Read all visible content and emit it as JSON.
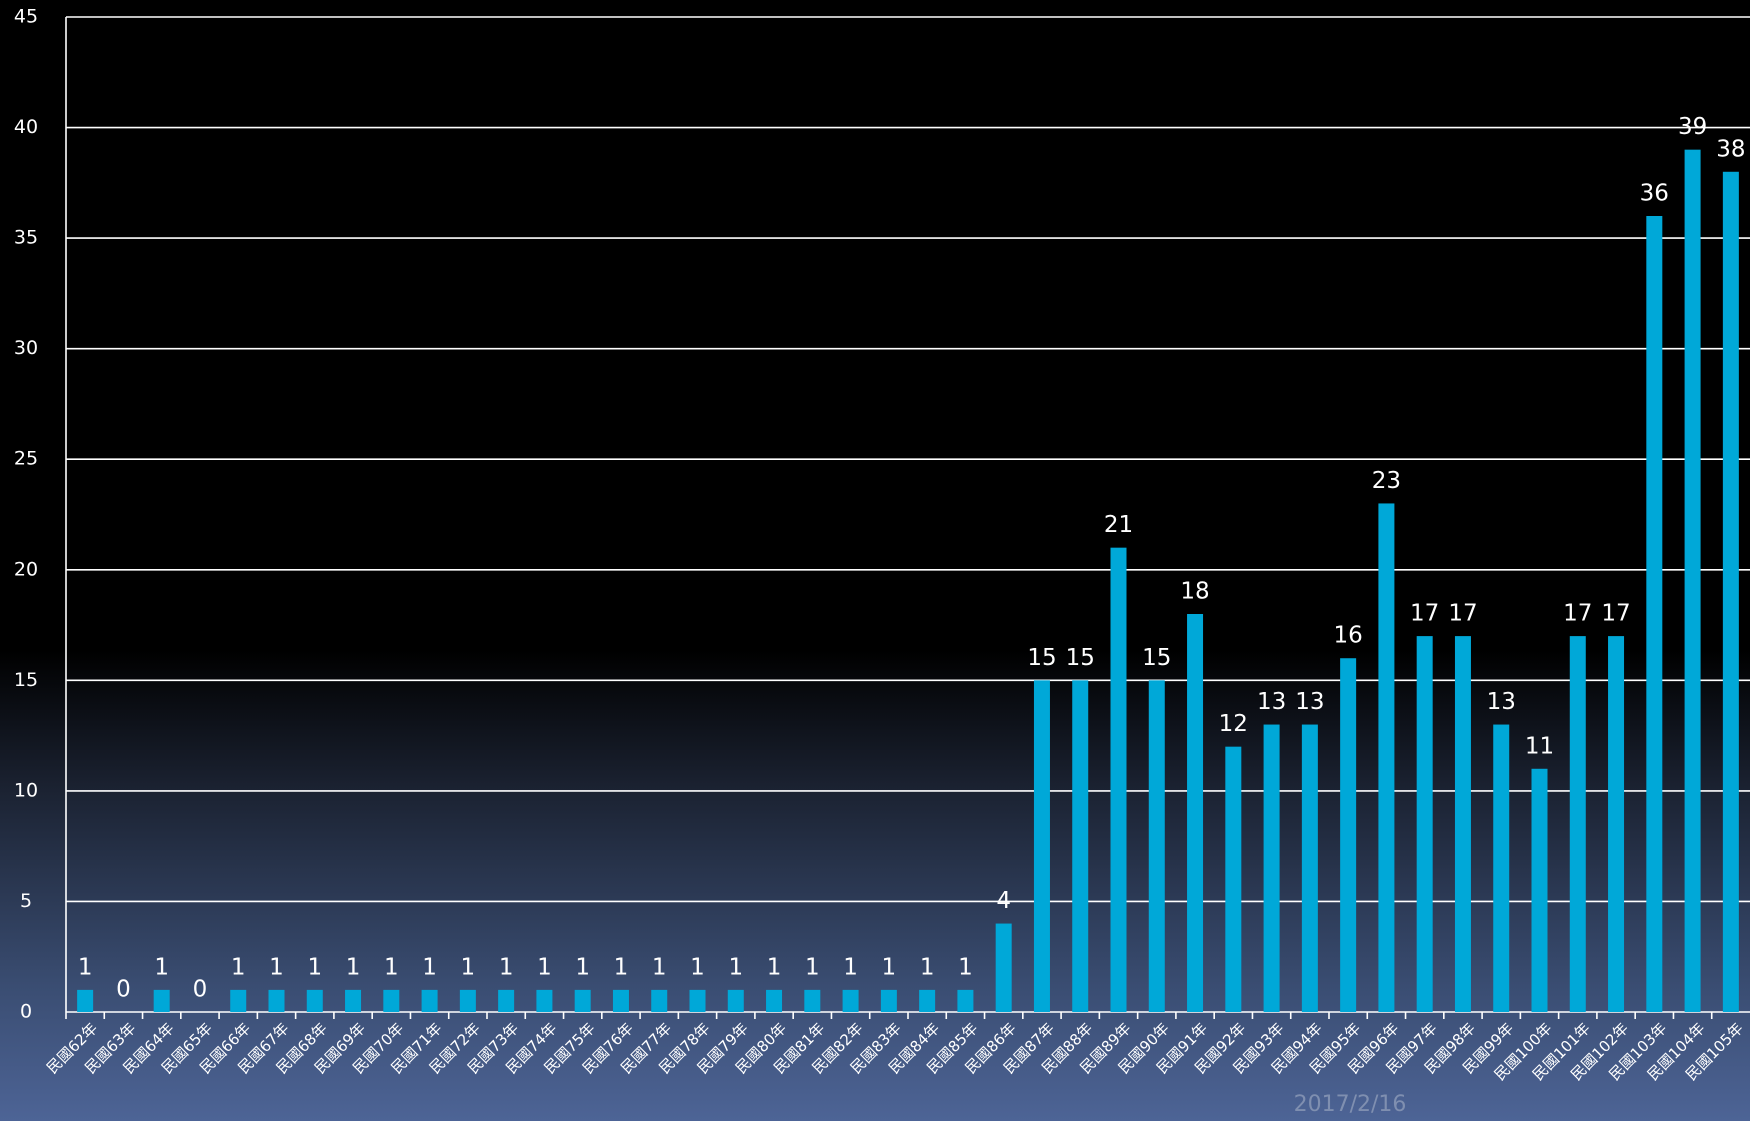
{
  "chart_data": {
    "type": "bar",
    "categories": [
      "民國62年",
      "民國63年",
      "民國64年",
      "民國65年",
      "民國66年",
      "民國67年",
      "民國68年",
      "民國69年",
      "民國70年",
      "民國71年",
      "民國72年",
      "民國73年",
      "民國74年",
      "民國75年",
      "民國76年",
      "民國77年",
      "民國78年",
      "民國79年",
      "民國80年",
      "民國81年",
      "民國82年",
      "民國83年",
      "民國84年",
      "民國85年",
      "民國86年",
      "民國87年",
      "民國88年",
      "民國89年",
      "民國90年",
      "民國91年",
      "民國92年",
      "民國93年",
      "民國94年",
      "民國95年",
      "民國96年",
      "民國97年",
      "民國98年",
      "民國99年",
      "民國100年",
      "民國101年",
      "民國102年",
      "民國103年",
      "民國104年",
      "民國105年"
    ],
    "values": [
      1,
      0,
      1,
      0,
      1,
      1,
      1,
      1,
      1,
      1,
      1,
      1,
      1,
      1,
      1,
      1,
      1,
      1,
      1,
      1,
      1,
      1,
      1,
      1,
      4,
      15,
      15,
      21,
      15,
      18,
      12,
      13,
      13,
      16,
      23,
      17,
      17,
      13,
      11,
      17,
      17,
      36,
      39,
      38
    ],
    "color": "#00a8d8",
    "ylim": [
      0,
      45
    ],
    "yticks": [
      0,
      5,
      10,
      15,
      20,
      25,
      30,
      35,
      40,
      45
    ],
    "grid": true
  },
  "footer": {
    "date": "2017/2/16"
  }
}
